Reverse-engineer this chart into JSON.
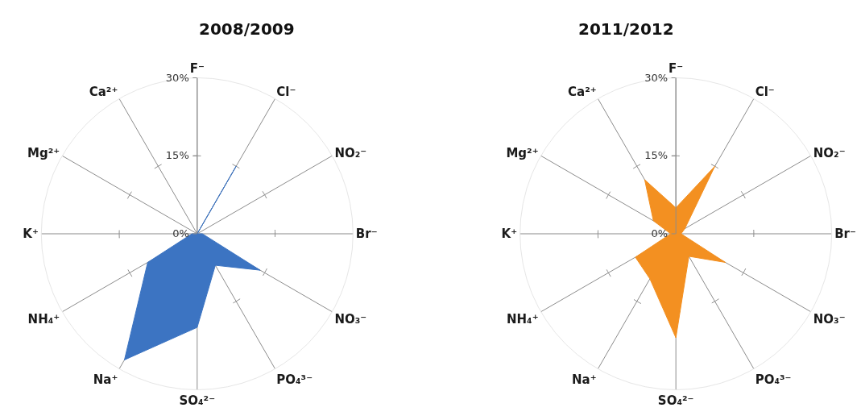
{
  "chart_data": [
    {
      "type": "radar",
      "title": "2008/2009",
      "categories": [
        "F⁻",
        "Cl⁻",
        "NO₂⁻",
        "Br⁻",
        "NO₃⁻",
        "PO₄³⁻",
        "SO₄²⁻",
        "Na⁺",
        "NH₄⁺",
        "K⁺",
        "Mg²⁺",
        "Ca²⁺"
      ],
      "series": [
        {
          "color": "#3c74c2",
          "values": [
            0,
            15,
            0,
            1,
            14,
            7,
            18,
            28,
            11,
            1,
            0,
            0
          ]
        }
      ],
      "ylim": [
        0,
        30
      ],
      "yticks": [
        {
          "value": 0,
          "label": "0%"
        },
        {
          "value": 15,
          "label": "15%"
        },
        {
          "value": 30,
          "label": "30%"
        }
      ],
      "grid": true
    },
    {
      "type": "radar",
      "title": "2011/2012",
      "categories": [
        "F⁻",
        "Cl⁻",
        "NO₂⁻",
        "Br⁻",
        "NO₃⁻",
        "PO₄³⁻",
        "SO₄²⁻",
        "Na⁺",
        "NH₄⁺",
        "K⁺",
        "Mg²⁺",
        "Ca²⁺"
      ],
      "series": [
        {
          "color": "#f39021",
          "values": [
            5,
            15,
            2,
            1,
            11,
            5,
            20,
            10,
            9,
            1,
            5,
            12
          ]
        }
      ],
      "ylim": [
        0,
        30
      ],
      "yticks": [
        {
          "value": 0,
          "label": "0%"
        },
        {
          "value": 15,
          "label": "15%"
        },
        {
          "value": 30,
          "label": "30%"
        }
      ],
      "grid": true
    }
  ]
}
